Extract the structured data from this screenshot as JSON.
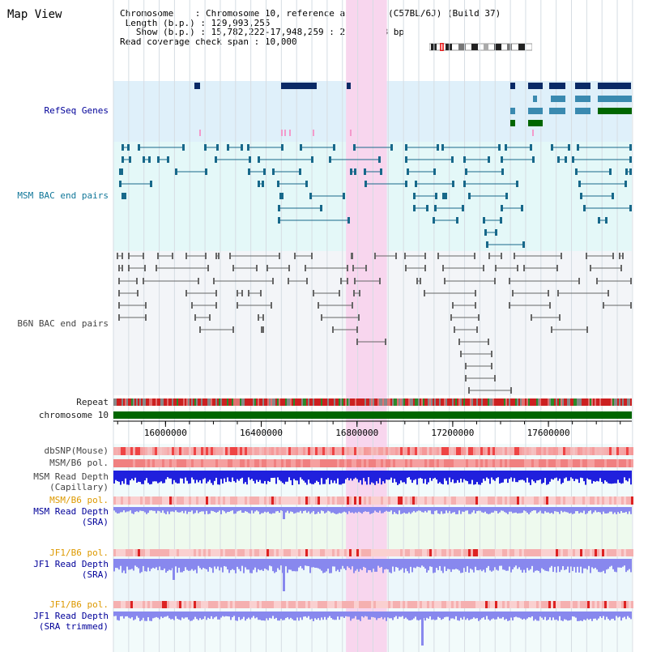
{
  "title": "Map View",
  "info": {
    "chromosome_label": "Chromosome",
    "chromosome_value": "Chromosome 10, reference assembly (C57BL/6J) (Build 37)",
    "length_label": "Length (b.p.)",
    "length_value": "129,993,255",
    "show_label": "Show (b.p.)",
    "show_value": "15,782,222-17,948,259 : 2,166,038 bp",
    "span_label": "Read coverage check span",
    "span_value": "10,000"
  },
  "tracks": {
    "refseq": "RefSeq Genes",
    "msm_bac": "MSM BAC end pairs",
    "b6n_bac": "B6N BAC end pairs",
    "repeat": "Repeat",
    "chromosome": "chromosome 10",
    "dbsnp": "dbSNP(Mouse)",
    "msm_b6_pol_1": "MSM/B6 pol.",
    "msm_read_depth_cap_1": "MSM Read Depth",
    "msm_read_depth_cap_2": "(Capillary)",
    "msm_b6_pol_2": "MSM/B6 pol.",
    "msm_read_depth_sra_1": "MSM Read Depth",
    "msm_read_depth_sra_2": "(SRA)",
    "jf1_b6_pol_1": "JF1/B6 pol.",
    "jf1_read_depth_sra_1": "JF1 Read Depth",
    "jf1_read_depth_sra_2": "(SRA)",
    "jf1_b6_pol_2": "JF1/B6 pol.",
    "jf1_read_depth_trim_1": "JF1 Read Depth",
    "jf1_read_depth_trim_2": "(SRA trimmed)"
  },
  "axis": {
    "ticks": [
      "16000000",
      "16400000",
      "16800000",
      "17200000",
      "17600000"
    ],
    "range_start": 15782222,
    "range_end": 17948259
  },
  "highlight": {
    "start": 16754000,
    "end": 16925000
  },
  "colors": {
    "refseq_bg": "#dff0fa",
    "msm_bg": "#e4f8f8",
    "b6n_bg": "#f3f5f8",
    "highlight": "#f8d6ee",
    "gene_dark": "#0a2a66",
    "gene_mid": "#3a8ab0",
    "gene_green": "#006600",
    "msm_feature": "#17688a",
    "b6n_feature": "#666666",
    "chrom_bar": "#006600",
    "depth_blue": "#2020dd",
    "depth_light": "#8888ee"
  }
}
